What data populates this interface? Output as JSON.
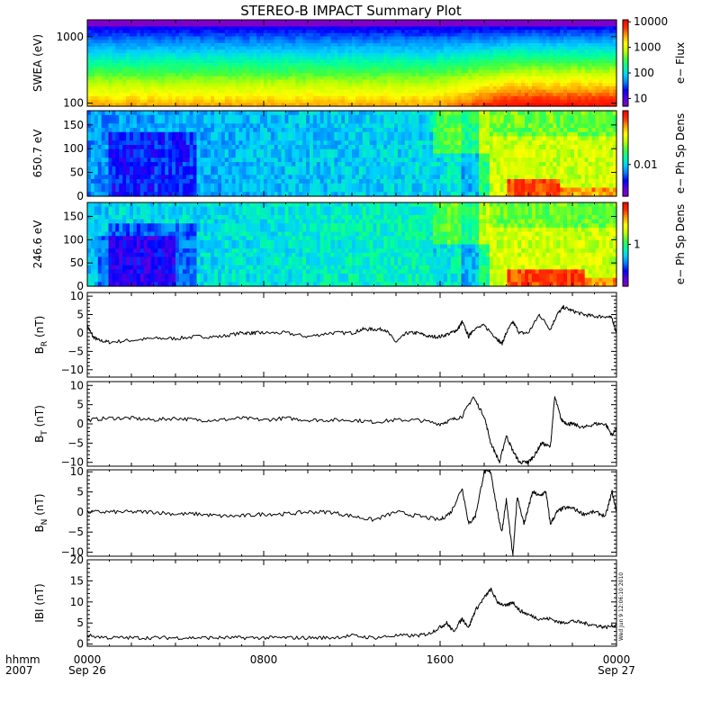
{
  "chart_data": {
    "type": "line",
    "title": "STEREO-B IMPACT Summary Plot",
    "colors": {
      "colormap": [
        "#7f00c8",
        "#5a00e0",
        "#0000ff",
        "#007fff",
        "#00d0ff",
        "#00ff9f",
        "#40ff40",
        "#c0ff00",
        "#ffff00",
        "#ffa000",
        "#ff3000",
        "#ff0000"
      ],
      "trace": "#000000",
      "frame": "#000000"
    },
    "x_axis": {
      "unit_label": "hhmm",
      "year_label": "2007",
      "range_hours": [
        0,
        24
      ],
      "ticks": [
        {
          "hours": 0,
          "label": "0000",
          "sublabel": "Sep 26"
        },
        {
          "hours": 8,
          "label": "0800",
          "sublabel": ""
        },
        {
          "hours": 16,
          "label": "1600",
          "sublabel": ""
        },
        {
          "hours": 24,
          "label": "0000",
          "sublabel": "Sep 27"
        }
      ]
    },
    "stamp": "Wed Jun 9 12:06:10 2010",
    "spectrogram_panels": [
      {
        "type": "heatmap",
        "ylabel": "SWEA (eV)",
        "y_scale": "log",
        "ylim": [
          90,
          1800
        ],
        "y_ticks": [
          {
            "value": 100,
            "label": "100"
          },
          {
            "value": 1000,
            "label": "1000"
          }
        ],
        "colorbar": {
          "label": "e− Flux",
          "scale": "log",
          "range": [
            5,
            12000
          ],
          "ticks": [
            {
              "value": 10,
              "label": "10"
            },
            {
              "value": 100,
              "label": "100"
            },
            {
              "value": 1000,
              "label": "1000"
            },
            {
              "value": 10000,
              "label": "10000"
            }
          ]
        }
      },
      {
        "type": "heatmap",
        "ylabel": "650.7 eV",
        "y_scale": "linear",
        "ylim": [
          0,
          180
        ],
        "y_ticks": [
          {
            "value": 0,
            "label": "0"
          },
          {
            "value": 50,
            "label": "50"
          },
          {
            "value": 100,
            "label": "100"
          },
          {
            "value": 150,
            "label": "150"
          }
        ],
        "colorbar": {
          "label": "e− Ph Sp Dens",
          "scale": "log",
          "range": [
            0.001,
            0.5
          ],
          "ticks": [
            {
              "value": 0.01,
              "label": "0.01"
            }
          ]
        }
      },
      {
        "type": "heatmap",
        "ylabel": "246.6 eV",
        "y_scale": "linear",
        "ylim": [
          0,
          180
        ],
        "y_ticks": [
          {
            "value": 0,
            "label": "0"
          },
          {
            "value": 50,
            "label": "50"
          },
          {
            "value": 100,
            "label": "100"
          },
          {
            "value": 150,
            "label": "150"
          }
        ],
        "colorbar": {
          "label": "e− Ph Sp Dens",
          "scale": "log",
          "range": [
            0.1,
            10
          ],
          "ticks": [
            {
              "value": 1,
              "label": "1"
            }
          ]
        }
      }
    ],
    "line_panels": [
      {
        "ylabel": "B",
        "ylabel_sub": "R",
        "ylabel_unit": " (nT)",
        "ylim": [
          -12,
          11
        ],
        "y_ticks": [
          {
            "value": -10,
            "label": "−10"
          },
          {
            "value": -5,
            "label": "−5"
          },
          {
            "value": 0,
            "label": "0"
          },
          {
            "value": 5,
            "label": "5"
          },
          {
            "value": 10,
            "label": "10"
          }
        ],
        "series": [
          {
            "x": [
              0,
              0.25,
              0.5,
              1,
              2,
              3,
              4,
              5,
              6,
              7,
              7.5,
              8,
              9,
              10,
              11,
              12,
              12.5,
              13,
              13.5,
              14,
              14.5,
              15,
              15.5,
              16,
              16.5,
              16.8,
              17,
              17.3,
              17.5,
              18,
              18.5,
              18.8,
              19,
              19.3,
              19.6,
              20,
              20.5,
              21,
              21.3,
              21.6,
              22,
              22.5,
              23,
              23.5,
              23.8,
              24
            ],
            "y": [
              2,
              -1,
              -2,
              -2.5,
              -2,
              -1.5,
              -1.5,
              -1,
              -1,
              0,
              0,
              0,
              0,
              -1,
              0,
              0,
              1,
              1,
              1,
              -2.5,
              0,
              0,
              -1,
              -1,
              0,
              1,
              3,
              -1,
              1,
              2,
              -1,
              -3,
              0,
              3,
              0,
              0,
              5,
              1,
              5,
              7,
              6,
              5,
              4.5,
              4.5,
              4,
              0
            ]
          }
        ]
      },
      {
        "ylabel": "B",
        "ylabel_sub": "T",
        "ylabel_unit": " (nT)",
        "ylim": [
          -11,
          11
        ],
        "y_ticks": [
          {
            "value": -10,
            "label": "−10"
          },
          {
            "value": -5,
            "label": "−5"
          },
          {
            "value": 0,
            "label": "0"
          },
          {
            "value": 5,
            "label": "5"
          },
          {
            "value": 10,
            "label": "10"
          }
        ],
        "series": [
          {
            "x": [
              0,
              1,
              2,
              3,
              4,
              5,
              6,
              7,
              8,
              9,
              10,
              11,
              12,
              13,
              14,
              15,
              16,
              16.5,
              17,
              17.5,
              18,
              18.3,
              18.7,
              19,
              19.3,
              19.6,
              19.9,
              20,
              20.3,
              20.6,
              21,
              21.2,
              21.5,
              21.8,
              22,
              22.5,
              23,
              23.5,
              23.8,
              24
            ],
            "y": [
              1,
              1.5,
              1.5,
              1,
              1.5,
              1,
              1,
              1.5,
              1,
              1.5,
              1,
              1,
              1,
              0.5,
              1,
              1,
              0,
              1,
              2,
              7,
              2,
              -5,
              -10,
              -3,
              -7,
              -10,
              -10,
              -10,
              -8,
              -5,
              -6,
              7,
              1,
              0,
              0,
              -1,
              0,
              0,
              -3,
              -1
            ]
          }
        ]
      },
      {
        "ylabel": "B",
        "ylabel_sub": "N",
        "ylabel_unit": " (nT)",
        "ylim": [
          -11,
          10.5
        ],
        "y_ticks": [
          {
            "value": -10,
            "label": "−10"
          },
          {
            "value": -5,
            "label": "−5"
          },
          {
            "value": 0,
            "label": "0"
          },
          {
            "value": 5,
            "label": "5"
          },
          {
            "value": 10,
            "label": "10"
          }
        ],
        "series": [
          {
            "x": [
              0,
              1,
              2,
              3,
              4,
              5,
              6,
              7,
              8,
              9,
              10,
              11,
              12,
              13,
              14,
              15,
              16,
              16.5,
              17,
              17.3,
              17.6,
              18,
              18.3,
              18.6,
              18.8,
              19,
              19.3,
              19.5,
              19.8,
              20,
              20.2,
              20.5,
              20.8,
              21,
              21.3,
              21.6,
              22,
              22.5,
              23,
              23.5,
              23.8,
              24
            ],
            "y": [
              0,
              0,
              0,
              0,
              -0.5,
              -0.5,
              -1,
              -1,
              -0.5,
              -0.5,
              0,
              0,
              -1,
              -2,
              0,
              -1,
              -2,
              0,
              6,
              -3,
              -1,
              10,
              10,
              0,
              -5,
              3,
              -11,
              4,
              -3,
              1,
              5,
              4,
              5,
              -3,
              0,
              1,
              1,
              -0.5,
              0,
              -1,
              5,
              0
            ]
          }
        ]
      },
      {
        "ylabel": "IBI",
        "ylabel_sub": "",
        "ylabel_unit": " (nT)",
        "ylim": [
          -0.5,
          20
        ],
        "y_ticks": [
          {
            "value": 0,
            "label": "0"
          },
          {
            "value": 5,
            "label": "5"
          },
          {
            "value": 10,
            "label": "10"
          },
          {
            "value": 15,
            "label": "15"
          },
          {
            "value": 20,
            "label": "20"
          }
        ],
        "series": [
          {
            "x": [
              0,
              1,
              2,
              3,
              4,
              5,
              6,
              7,
              8,
              9,
              10,
              11,
              12,
              13,
              14,
              15,
              15.5,
              16,
              16.3,
              16.6,
              17,
              17.3,
              17.6,
              18,
              18.3,
              18.6,
              19,
              19.3,
              19.6,
              20,
              20.5,
              21,
              21.5,
              22,
              22.5,
              23,
              23.5,
              24
            ],
            "y": [
              2,
              1.5,
              1.5,
              1.5,
              1.5,
              1.5,
              1.5,
              1.5,
              1.5,
              1.5,
              1.5,
              1.5,
              2,
              1.5,
              2,
              2,
              2.5,
              4,
              5,
              3,
              6,
              4,
              8,
              11,
              13,
              10,
              9,
              10,
              8,
              7,
              6,
              6,
              5,
              5.5,
              5,
              4.5,
              4,
              4.5
            ]
          }
        ]
      }
    ]
  }
}
